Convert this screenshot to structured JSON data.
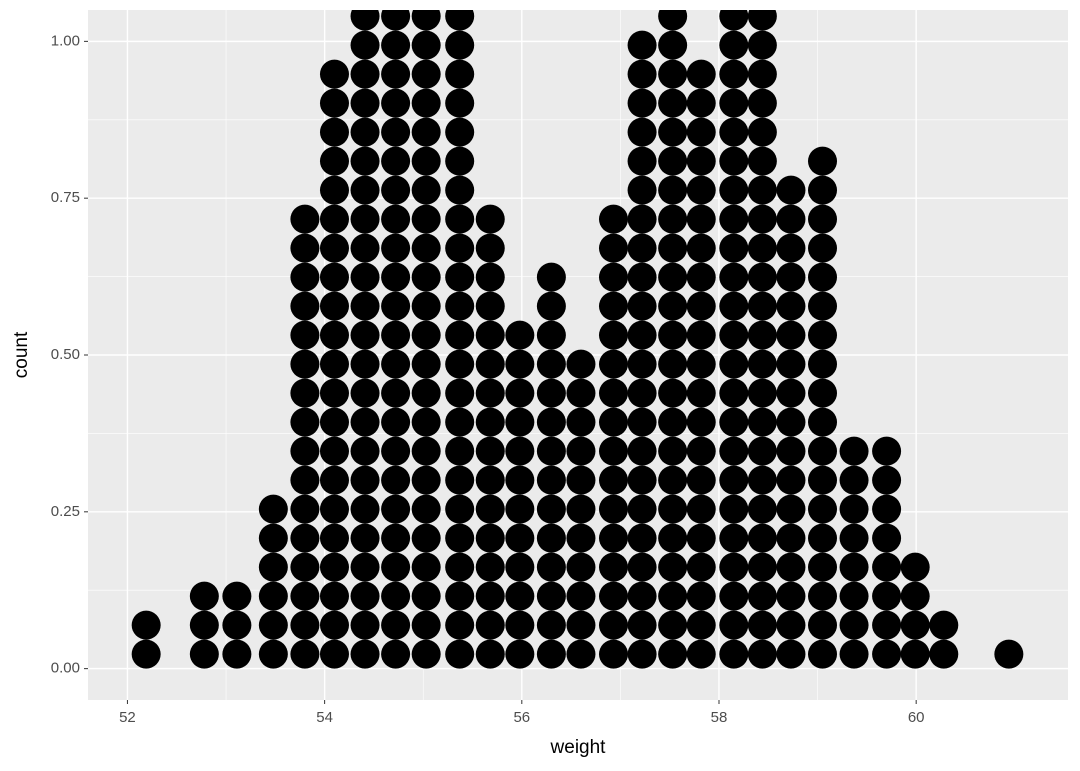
{
  "chart_data": {
    "type": "dotplot",
    "x_label": "weight",
    "y_label": "count",
    "x": [
      52.19,
      52.78,
      53.11,
      53.48,
      53.8,
      54.1,
      54.41,
      54.72,
      55.03,
      55.37,
      55.68,
      55.98,
      56.3,
      56.6,
      56.93,
      57.22,
      57.53,
      57.82,
      58.15,
      58.44,
      58.73,
      59.05,
      59.37,
      59.7,
      59.99,
      60.28,
      60.94
    ],
    "counts": [
      2,
      3,
      3,
      6,
      16,
      21,
      23,
      23,
      23,
      23,
      16,
      12,
      14,
      11,
      16,
      22,
      23,
      21,
      23,
      23,
      17,
      18,
      8,
      8,
      4,
      2,
      1
    ],
    "color": "#000000",
    "xlim": [
      51.6,
      61.54
    ],
    "ylim": [
      -0.05,
      1.05
    ],
    "xticks": [
      52,
      54,
      56,
      58,
      60
    ],
    "yticks": [
      {
        "value": 0,
        "label": "0.00"
      },
      {
        "value": 0.25,
        "label": "0.25"
      },
      {
        "value": 0.5,
        "label": "0.50"
      },
      {
        "value": 0.75,
        "label": "0.75"
      },
      {
        "value": 1,
        "label": "1.00"
      }
    ],
    "grid": true
  }
}
